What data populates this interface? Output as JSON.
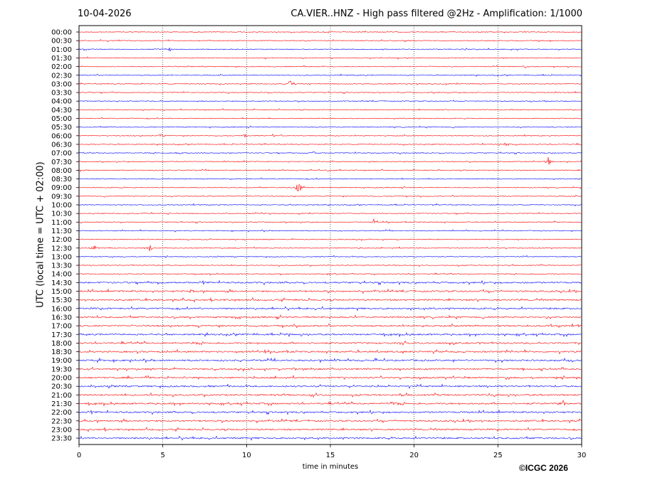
{
  "header": {
    "date": "10-04-2026",
    "title": "CA.VIER..HNZ - High pass filtered @2Hz - Amplification: 1/1000"
  },
  "footer": {
    "copyright": "©ICGC 2026"
  },
  "colors": {
    "red_trace": "#ff0000",
    "blue_trace": "#0000ff",
    "grid": "#000000"
  },
  "chart_data": {
    "type": "line",
    "title": "CA.VIER..HNZ - High pass filtered @2Hz - Amplification: 1/1000",
    "xlabel": "time in minutes",
    "ylabel": "UTC (local time = UTC + 02:00)",
    "xlim": [
      0,
      30
    ],
    "x_ticks": [
      "0",
      "5",
      "10",
      "15",
      "20",
      "25",
      "30"
    ],
    "grid": "vertical dotted at 5-minute intervals",
    "row_labels": [
      "00:00",
      "00:30",
      "01:00",
      "01:30",
      "02:00",
      "02:30",
      "03:00",
      "03:30",
      "04:00",
      "04:30",
      "05:00",
      "05:30",
      "06:00",
      "06:30",
      "07:00",
      "07:30",
      "08:00",
      "08:30",
      "09:00",
      "09:30",
      "10:00",
      "10:30",
      "11:00",
      "11:30",
      "12:00",
      "12:30",
      "13:00",
      "13:30",
      "14:00",
      "14:30",
      "15:00",
      "15:30",
      "16:00",
      "16:30",
      "17:00",
      "17:30",
      "18:00",
      "18:30",
      "19:00",
      "19:30",
      "20:00",
      "20:30",
      "21:00",
      "21:30",
      "22:00",
      "22:30",
      "23:00",
      "23:30"
    ],
    "row_color_pattern": [
      "red",
      "red",
      "blue",
      "red",
      "red",
      "blue"
    ],
    "events": [
      {
        "row": "01:00",
        "x": 5.4,
        "amp": 4
      },
      {
        "row": "02:00",
        "x": 26.6,
        "amp": 4
      },
      {
        "row": "03:00",
        "x": 12.6,
        "amp": 5
      },
      {
        "row": "06:00",
        "x": 4.9,
        "amp": 5
      },
      {
        "row": "06:00",
        "x": 9.9,
        "amp": 3
      },
      {
        "row": "06:00",
        "x": 11.6,
        "amp": 3
      },
      {
        "row": "06:30",
        "x": 25.5,
        "amp": 5
      },
      {
        "row": "07:00",
        "x": 6.0,
        "amp": 3
      },
      {
        "row": "07:00",
        "x": 14.0,
        "amp": 3
      },
      {
        "row": "07:30",
        "x": 28.0,
        "amp": 7
      },
      {
        "row": "08:00",
        "x": 15.0,
        "amp": 2
      },
      {
        "row": "09:00",
        "x": 13.1,
        "amp": 11
      },
      {
        "row": "10:30",
        "x": 10.6,
        "amp": 2
      },
      {
        "row": "11:00",
        "x": 17.6,
        "amp": 5
      },
      {
        "row": "12:30",
        "x": 0.9,
        "amp": 6
      },
      {
        "row": "12:30",
        "x": 4.2,
        "amp": 7
      },
      {
        "row": "14:00",
        "x": 29.5,
        "amp": 2
      },
      {
        "row": "15:00",
        "x": 6.7,
        "amp": 3
      },
      {
        "row": "17:30",
        "x": 12.4,
        "amp": 2
      },
      {
        "row": "21:30",
        "x": 18.6,
        "amp": 4
      },
      {
        "row": "21:30",
        "x": 28.9,
        "amp": 5
      }
    ]
  }
}
